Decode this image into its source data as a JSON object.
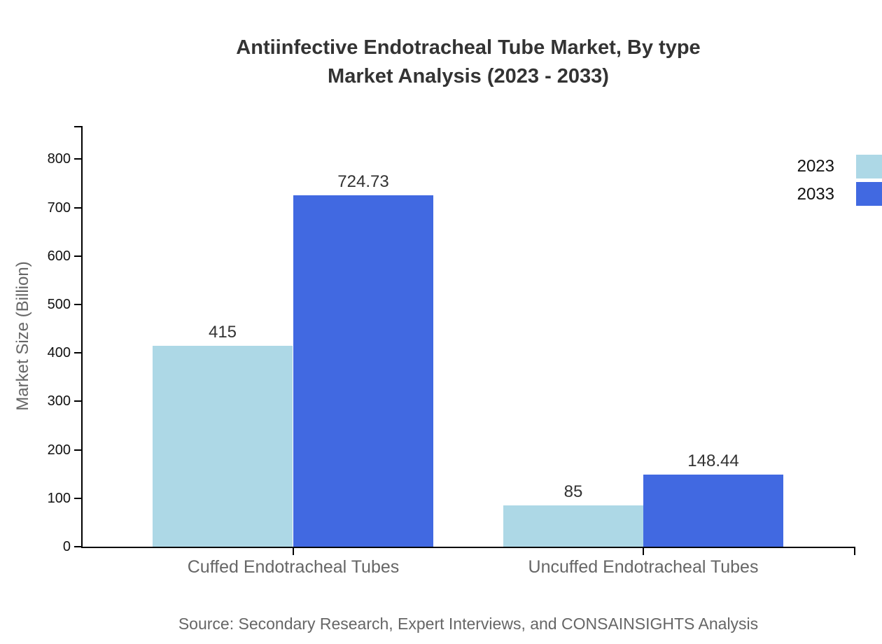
{
  "chart_data": {
    "type": "bar",
    "title": "Antiinfective Endotracheal Tube Market, By type Market Analysis (2023 - 2033)",
    "title_lines": [
      "Antiinfective Endotracheal Tube Market, By type",
      "Market Analysis (2023 - 2033)"
    ],
    "categories": [
      "Cuffed Endotracheal Tubes",
      "Uncuffed Endotracheal Tubes"
    ],
    "series": [
      {
        "name": "2023",
        "color": "#ADD8E6",
        "values": [
          415,
          85
        ]
      },
      {
        "name": "2033",
        "color": "#4169E1",
        "values": [
          724.73,
          148.44
        ]
      }
    ],
    "xlabel": "",
    "ylabel": "Market Size (Billion)",
    "ylim": [
      0,
      868.5
    ],
    "yticks": [
      0,
      100,
      200,
      300,
      400,
      500,
      600,
      700,
      800
    ],
    "grid": false,
    "legend_position": "top-right",
    "source_note": "Source: Secondary Research, Expert Interviews, and CONSAINSIGHTS Analysis"
  },
  "style": {
    "background": "#ffffff",
    "axis_color": "#000000",
    "title_color": "#333333",
    "value_label_color": "#333333",
    "tick_label_color": "#111111",
    "category_label_color": "#666666",
    "ylabel_color": "#666666",
    "source_color": "#666666"
  }
}
